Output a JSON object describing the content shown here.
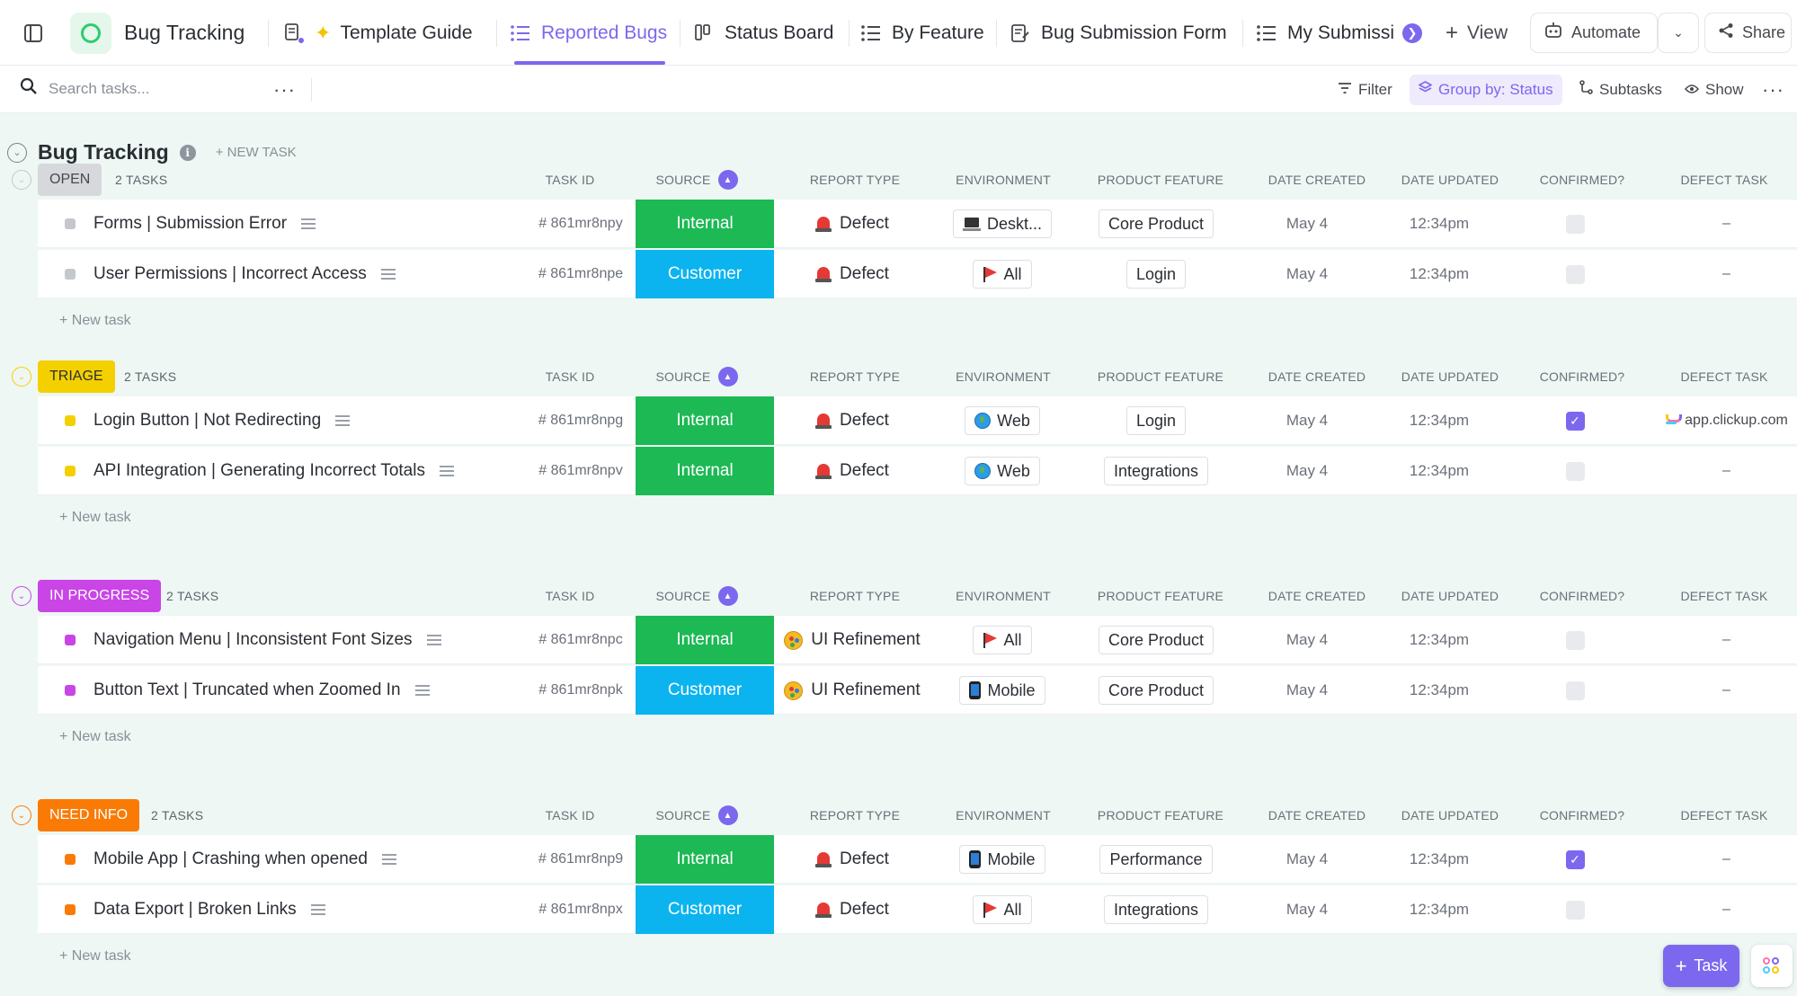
{
  "app": {
    "workspace_title": "Bug Tracking"
  },
  "tabs": [
    {
      "label": "Template Guide",
      "icon": "doc-sparkle-icon"
    },
    {
      "label": "Reported Bugs",
      "icon": "list-icon",
      "active": true
    },
    {
      "label": "Status Board",
      "icon": "board-icon"
    },
    {
      "label": "By Feature",
      "icon": "list-icon"
    },
    {
      "label": "Bug Submission Form",
      "icon": "form-icon"
    },
    {
      "label": "My Submissi",
      "icon": "list-icon"
    }
  ],
  "topbar": {
    "add_view_label": "View",
    "automate_label": "Automate",
    "share_label": "Share"
  },
  "toolbar": {
    "search_placeholder": "Search tasks...",
    "filter_label": "Filter",
    "group_by_label": "Group by: Status",
    "subtasks_label": "Subtasks",
    "show_label": "Show"
  },
  "list": {
    "title": "Bug Tracking",
    "new_task_label": "+ NEW TASK"
  },
  "columns": {
    "task_id": "TASK ID",
    "source": "SOURCE",
    "report_type": "REPORT TYPE",
    "environment": "ENVIRONMENT",
    "product_feature": "PRODUCT FEATURE",
    "date_created": "DATE CREATED",
    "date_updated": "DATE UPDATED",
    "confirmed": "CONFIRMED?",
    "defect_task": "DEFECT TASK"
  },
  "colors": {
    "accent": "#7b68ee",
    "source_internal": "#1db954",
    "source_customer": "#0bb4ef",
    "status_open": "#d8dadd",
    "status_triage": "#f5d000",
    "status_in_progress": "#c945e6",
    "status_need_info": "#f97b06"
  },
  "groups": [
    {
      "status": "OPEN",
      "count": "2 TASKS",
      "color": "#d6d8db",
      "text_color": "#46494f",
      "dot": "#c4c7cc",
      "new_task": "+ New task",
      "tasks": [
        {
          "name": "Forms | Submission Error",
          "id": "# 861mr8npy",
          "source": "Internal",
          "report_type": "Defect",
          "rt_icon": "siren-icon",
          "env": "Deskt...",
          "env_icon": "laptop-icon",
          "feature": "Core Product",
          "created": "May 4",
          "updated": "12:34pm",
          "confirmed": false,
          "defect": "–"
        },
        {
          "name": "User Permissions | Incorrect Access",
          "id": "# 861mr8npe",
          "source": "Customer",
          "report_type": "Defect",
          "rt_icon": "siren-icon",
          "env": "All",
          "env_icon": "flag-icon",
          "feature": "Login",
          "created": "May 4",
          "updated": "12:34pm",
          "confirmed": false,
          "defect": "–"
        }
      ]
    },
    {
      "status": "TRIAGE",
      "count": "2 TASKS",
      "color": "#f5d000",
      "text_color": "#2a2e34",
      "dot": "#f5d000",
      "new_task": "+ New task",
      "tasks": [
        {
          "name": "Login Button | Not Redirecting",
          "id": "# 861mr8npg",
          "source": "Internal",
          "report_type": "Defect",
          "rt_icon": "siren-icon",
          "env": "Web",
          "env_icon": "globe-icon",
          "feature": "Login",
          "created": "May 4",
          "updated": "12:34pm",
          "confirmed": true,
          "defect": "app.clickup.com",
          "defect_link": true
        },
        {
          "name": "API Integration | Generating Incorrect Totals",
          "id": "# 861mr8npv",
          "source": "Internal",
          "report_type": "Defect",
          "rt_icon": "siren-icon",
          "env": "Web",
          "env_icon": "globe-icon",
          "feature": "Integrations",
          "created": "May 4",
          "updated": "12:34pm",
          "confirmed": false,
          "defect": "–"
        }
      ]
    },
    {
      "status": "IN PROGRESS",
      "count": "2 TASKS",
      "color": "#c945e6",
      "text_color": "#ffffff",
      "dot": "#c945e6",
      "new_task": "+ New task",
      "tasks": [
        {
          "name": "Navigation Menu | Inconsistent Font Sizes",
          "id": "# 861mr8npc",
          "source": "Internal",
          "report_type": "UI Refinement",
          "rt_icon": "palette-icon",
          "env": "All",
          "env_icon": "flag-icon",
          "feature": "Core Product",
          "created": "May 4",
          "updated": "12:34pm",
          "confirmed": false,
          "defect": "–"
        },
        {
          "name": "Button Text | Truncated when Zoomed In",
          "id": "# 861mr8npk",
          "source": "Customer",
          "report_type": "UI Refinement",
          "rt_icon": "palette-icon",
          "env": "Mobile",
          "env_icon": "phone-icon",
          "feature": "Core Product",
          "created": "May 4",
          "updated": "12:34pm",
          "confirmed": false,
          "defect": "–"
        }
      ]
    },
    {
      "status": "NEED INFO",
      "count": "2 TASKS",
      "color": "#f97b06",
      "text_color": "#ffffff",
      "dot": "#f97b06",
      "new_task": "+ New task",
      "tasks": [
        {
          "name": "Mobile App | Crashing when opened",
          "id": "# 861mr8np9",
          "source": "Internal",
          "report_type": "Defect",
          "rt_icon": "siren-icon",
          "env": "Mobile",
          "env_icon": "phone-icon",
          "feature": "Performance",
          "created": "May 4",
          "updated": "12:34pm",
          "confirmed": true,
          "defect": "–"
        },
        {
          "name": "Data Export | Broken Links",
          "id": "# 861mr8npx",
          "source": "Customer",
          "report_type": "Defect",
          "rt_icon": "siren-icon",
          "env": "All",
          "env_icon": "flag-icon",
          "feature": "Integrations",
          "created": "May 4",
          "updated": "12:34pm",
          "confirmed": false,
          "defect": "–"
        }
      ]
    }
  ],
  "fab": {
    "task_label": "Task"
  }
}
